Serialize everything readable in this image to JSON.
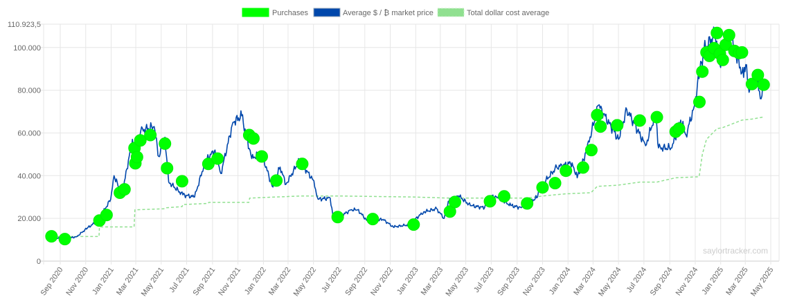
{
  "chart_data": {
    "type": "line",
    "title": "",
    "xlabel": "",
    "ylabel": "",
    "ylim": [
      0,
      110923.5
    ],
    "xlim": [
      "2020-08-10",
      "2025-05-15"
    ],
    "grid": true,
    "legend_position": "top-center",
    "y_ticks": [
      "0",
      "20.000",
      "40.000",
      "60.000",
      "80.000",
      "100.000",
      "110.923,5"
    ],
    "y_tick_values": [
      0,
      20000,
      40000,
      60000,
      80000,
      100000,
      110923.5
    ],
    "x_ticks": [
      "Sep 2020",
      "Nov 2020",
      "Jan 2021",
      "Mar 2021",
      "May 2021",
      "Jul 2021",
      "Sep 2021",
      "Nov 2021",
      "Jan 2022",
      "Mar 2022",
      "May 2022",
      "Jul 2022",
      "Sep 2022",
      "Nov 2022",
      "Jan 2023",
      "Mar 2023",
      "May 2023",
      "Jul 2023",
      "Sep 2023",
      "Nov 2023",
      "Jan 2024",
      "Mar 2024",
      "May 2024",
      "Jul 2024",
      "Sep 2024",
      "Nov 2024",
      "Jan 2025",
      "Mar 2025",
      "May 2025"
    ],
    "x_tick_dates": [
      "2020-09-01",
      "2020-11-01",
      "2021-01-01",
      "2021-03-01",
      "2021-05-01",
      "2021-07-01",
      "2021-09-01",
      "2021-11-01",
      "2022-01-01",
      "2022-03-01",
      "2022-05-01",
      "2022-07-01",
      "2022-09-01",
      "2022-11-01",
      "2023-01-01",
      "2023-03-01",
      "2023-05-01",
      "2023-07-01",
      "2023-09-01",
      "2023-11-01",
      "2024-01-01",
      "2024-03-01",
      "2024-05-01",
      "2024-07-01",
      "2024-09-01",
      "2024-11-01",
      "2025-01-01",
      "2025-03-01",
      "2025-05-01"
    ],
    "watermark": "saylortracker.com",
    "series": [
      {
        "name": "Purchases",
        "type": "scatter",
        "color": "#00ff00",
        "points": [
          [
            "2020-08-11",
            11600
          ],
          [
            "2020-09-12",
            10300
          ],
          [
            "2020-12-04",
            19000
          ],
          [
            "2020-12-21",
            21600
          ],
          [
            "2021-01-22",
            32000
          ],
          [
            "2021-02-02",
            33600
          ],
          [
            "2021-02-26",
            52900
          ],
          [
            "2021-02-28",
            45800
          ],
          [
            "2021-03-04",
            48700
          ],
          [
            "2021-03-12",
            56500
          ],
          [
            "2021-04-05",
            59000
          ],
          [
            "2021-05-10",
            55000
          ],
          [
            "2021-05-15",
            43500
          ],
          [
            "2021-06-20",
            37400
          ],
          [
            "2021-08-22",
            45500
          ],
          [
            "2021-09-13",
            48000
          ],
          [
            "2021-11-28",
            59000
          ],
          [
            "2021-12-08",
            57400
          ],
          [
            "2021-12-28",
            49000
          ],
          [
            "2022-02-01",
            37700
          ],
          [
            "2022-04-04",
            45500
          ],
          [
            "2022-06-28",
            20600
          ],
          [
            "2022-09-20",
            19700
          ],
          [
            "2022-12-27",
            17100
          ],
          [
            "2023-03-24",
            23200
          ],
          [
            "2023-04-05",
            27700
          ],
          [
            "2023-06-28",
            28000
          ],
          [
            "2023-08-01",
            30300
          ],
          [
            "2023-09-25",
            27000
          ],
          [
            "2023-11-01",
            34500
          ],
          [
            "2023-12-01",
            36500
          ],
          [
            "2023-12-27",
            42300
          ],
          [
            "2024-02-06",
            43800
          ],
          [
            "2024-02-26",
            52000
          ],
          [
            "2024-03-11",
            68400
          ],
          [
            "2024-03-19",
            63000
          ],
          [
            "2024-04-28",
            63600
          ],
          [
            "2024-06-21",
            65800
          ],
          [
            "2024-08-01",
            67400
          ],
          [
            "2024-09-15",
            60600
          ],
          [
            "2024-09-23",
            62000
          ],
          [
            "2024-11-11",
            74500
          ],
          [
            "2024-11-18",
            88700
          ],
          [
            "2024-11-28",
            97700
          ],
          [
            "2024-12-05",
            96100
          ],
          [
            "2024-12-16",
            99700
          ],
          [
            "2024-12-23",
            106800
          ],
          [
            "2024-12-30",
            97100
          ],
          [
            "2025-01-06",
            94200
          ],
          [
            "2025-01-13",
            101300
          ],
          [
            "2025-01-21",
            105800
          ],
          [
            "2025-02-03",
            98400
          ],
          [
            "2025-02-14",
            97400
          ],
          [
            "2025-02-21",
            97700
          ],
          [
            "2025-03-17",
            82900
          ],
          [
            "2025-03-31",
            87100
          ],
          [
            "2025-04-14",
            82600
          ]
        ]
      },
      {
        "name": "Average $ / ₿ market price",
        "type": "line",
        "color": "#0047ab",
        "points": [
          [
            "2020-08-11",
            11500
          ],
          [
            "2020-09-08",
            10300
          ],
          [
            "2020-10-10",
            11400
          ],
          [
            "2020-11-05",
            15500
          ],
          [
            "2020-12-01",
            19000
          ],
          [
            "2020-12-31",
            29000
          ],
          [
            "2021-01-08",
            40000
          ],
          [
            "2021-01-27",
            31000
          ],
          [
            "2021-02-21",
            57000
          ],
          [
            "2021-03-01",
            46000
          ],
          [
            "2021-03-13",
            61000
          ],
          [
            "2021-04-14",
            63000
          ],
          [
            "2021-04-25",
            49000
          ],
          [
            "2021-05-10",
            58000
          ],
          [
            "2021-05-19",
            37000
          ],
          [
            "2021-06-22",
            31000
          ],
          [
            "2021-07-20",
            30000
          ],
          [
            "2021-08-15",
            47000
          ],
          [
            "2021-09-07",
            52000
          ],
          [
            "2021-09-21",
            41000
          ],
          [
            "2021-10-20",
            65000
          ],
          [
            "2021-11-10",
            68000
          ],
          [
            "2021-12-04",
            48000
          ],
          [
            "2021-12-27",
            51000
          ],
          [
            "2022-01-22",
            35000
          ],
          [
            "2022-02-10",
            44000
          ],
          [
            "2022-02-24",
            36000
          ],
          [
            "2022-03-28",
            47000
          ],
          [
            "2022-04-30",
            38000
          ],
          [
            "2022-05-12",
            29000
          ],
          [
            "2022-06-10",
            29500
          ],
          [
            "2022-06-18",
            19000
          ],
          [
            "2022-07-30",
            24000
          ],
          [
            "2022-08-15",
            24000
          ],
          [
            "2022-09-06",
            19000
          ],
          [
            "2022-10-15",
            19500
          ],
          [
            "2022-11-08",
            16000
          ],
          [
            "2022-12-15",
            17000
          ],
          [
            "2023-01-20",
            23000
          ],
          [
            "2023-02-20",
            24500
          ],
          [
            "2023-03-10",
            20000
          ],
          [
            "2023-03-20",
            28000
          ],
          [
            "2023-04-14",
            30500
          ],
          [
            "2023-05-12",
            26000
          ],
          [
            "2023-06-15",
            25000
          ],
          [
            "2023-06-23",
            30500
          ],
          [
            "2023-07-15",
            30000
          ],
          [
            "2023-08-17",
            26000
          ],
          [
            "2023-09-11",
            25000
          ],
          [
            "2023-10-20",
            30000
          ],
          [
            "2023-10-24",
            34000
          ],
          [
            "2023-12-05",
            44000
          ],
          [
            "2024-01-11",
            46000
          ],
          [
            "2024-01-23",
            39000
          ],
          [
            "2024-02-15",
            52000
          ],
          [
            "2024-03-14",
            73000
          ],
          [
            "2024-05-01",
            57000
          ],
          [
            "2024-05-21",
            71000
          ],
          [
            "2024-07-05",
            54000
          ],
          [
            "2024-07-29",
            69000
          ],
          [
            "2024-08-05",
            53000
          ],
          [
            "2024-09-06",
            53000
          ],
          [
            "2024-09-27",
            66000
          ],
          [
            "2024-10-10",
            59000
          ],
          [
            "2024-10-29",
            72000
          ],
          [
            "2024-11-12",
            89000
          ],
          [
            "2024-11-22",
            99000
          ],
          [
            "2024-12-17",
            106000
          ],
          [
            "2024-12-30",
            92000
          ],
          [
            "2025-01-20",
            108000
          ],
          [
            "2025-02-03",
            99000
          ],
          [
            "2025-02-25",
            86000
          ],
          [
            "2025-03-02",
            92000
          ],
          [
            "2025-03-10",
            79000
          ],
          [
            "2025-03-25",
            88000
          ],
          [
            "2025-04-08",
            76000
          ],
          [
            "2025-04-12",
            84000
          ]
        ]
      },
      {
        "name": "Total dollar cost average",
        "type": "line",
        "style": "dashed",
        "color": "#90e090",
        "points": [
          [
            "2020-08-11",
            11500
          ],
          [
            "2020-12-03",
            11500
          ],
          [
            "2020-12-04",
            16000
          ],
          [
            "2021-02-25",
            16000
          ],
          [
            "2021-02-27",
            24000
          ],
          [
            "2021-05-09",
            24500
          ],
          [
            "2021-05-14",
            25000
          ],
          [
            "2021-06-20",
            25500
          ],
          [
            "2021-06-22",
            26500
          ],
          [
            "2021-08-21",
            27000
          ],
          [
            "2021-08-23",
            27500
          ],
          [
            "2021-11-27",
            27500
          ],
          [
            "2021-11-29",
            29500
          ],
          [
            "2022-01-31",
            30000
          ],
          [
            "2022-04-04",
            30500
          ],
          [
            "2022-06-28",
            30500
          ],
          [
            "2022-12-27",
            30000
          ],
          [
            "2023-03-24",
            29500
          ],
          [
            "2023-09-25",
            29500
          ],
          [
            "2023-11-01",
            30500
          ],
          [
            "2023-12-27",
            31500
          ],
          [
            "2024-02-25",
            32000
          ],
          [
            "2024-03-11",
            35000
          ],
          [
            "2024-04-28",
            35500
          ],
          [
            "2024-06-21",
            37000
          ],
          [
            "2024-08-01",
            37000
          ],
          [
            "2024-09-15",
            39000
          ],
          [
            "2024-11-10",
            39500
          ],
          [
            "2024-11-11",
            40500
          ],
          [
            "2024-11-18",
            50000
          ],
          [
            "2024-11-28",
            57000
          ],
          [
            "2024-12-23",
            62000
          ],
          [
            "2025-01-06",
            62500
          ],
          [
            "2025-02-21",
            66000
          ],
          [
            "2025-03-17",
            66500
          ],
          [
            "2025-04-14",
            67500
          ]
        ]
      }
    ]
  }
}
